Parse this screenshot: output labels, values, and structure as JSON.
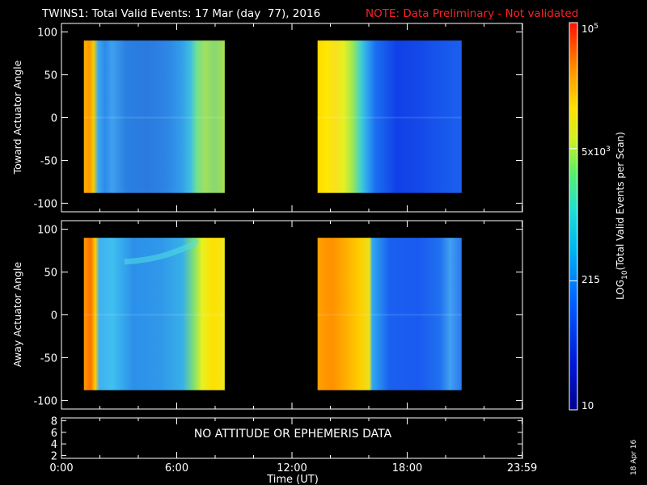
{
  "title": {
    "main": "TWINS1: Total Valid Events: 17 Mar (day  77), 2016",
    "note": "NOTE: Data Preliminary - Not validated",
    "note_color": "#ff2020"
  },
  "chart_data": [
    {
      "type": "heatmap",
      "name": "toward-panel",
      "ylabel": "Toward Actuator Angle",
      "ylim": [
        -110,
        110
      ],
      "yticks": [
        100,
        50,
        0,
        -50,
        -100
      ],
      "data_y_range": [
        -88,
        90
      ],
      "blocks": [
        {
          "x_start": "01:10",
          "x_end": "08:30"
        },
        {
          "x_start": "13:20",
          "x_end": "20:50"
        }
      ]
    },
    {
      "type": "heatmap",
      "name": "away-panel",
      "ylabel": "Away Actuator Angle",
      "ylim": [
        -110,
        110
      ],
      "yticks": [
        100,
        50,
        0,
        -50,
        -100
      ],
      "data_y_range": [
        -88,
        90
      ],
      "blocks": [
        {
          "x_start": "01:10",
          "x_end": "08:30"
        },
        {
          "x_start": "13:20",
          "x_end": "20:50"
        }
      ]
    },
    {
      "type": "line",
      "name": "attitude-panel",
      "ylim": [
        1.5,
        8.5
      ],
      "yticks": [
        8,
        6,
        4,
        2
      ],
      "message": "NO ATTITUDE OR EPHEMERIS DATA"
    }
  ],
  "xaxis": {
    "label": "Time (UT)",
    "ticks": [
      "0:00",
      "6:00",
      "12:00",
      "18:00",
      "23:59"
    ]
  },
  "colorbar": {
    "label": "LOG10(Total Valid Events per Scan)",
    "label_main": "LOG",
    "label_sub": "10",
    "label_rest": "(Total Valid Events per Scan)",
    "tick_top_base": "10",
    "tick_top_exp": "5",
    "tick_5k_base": "5x10",
    "tick_5k_exp": "3",
    "tick_215": "215",
    "tick_10": "10",
    "scale": "log",
    "range": [
      10,
      100000
    ]
  },
  "footer_date": "18 Apr 16"
}
